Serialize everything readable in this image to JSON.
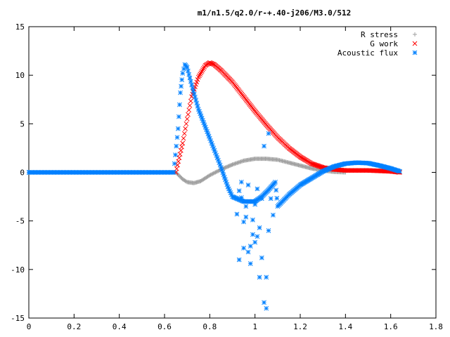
{
  "chart_data": {
    "type": "scatter",
    "title": "m1/n1.5/q2.0/r-+.40-j206/M3.0/512",
    "xlabel": "",
    "ylabel": "",
    "xlim": [
      0,
      1.8
    ],
    "ylim": [
      -15,
      15
    ],
    "x_ticks": [
      "0",
      "0.2",
      "0.4",
      "0.6",
      "0.8",
      "1",
      "1.2",
      "1.4",
      "1.6",
      "1.8"
    ],
    "y_ticks": [
      "15",
      "10",
      "5",
      "0",
      "-5",
      "-10",
      "-15"
    ],
    "grid": false,
    "legend_position": "top-right",
    "series": [
      {
        "name": "R stress",
        "marker": "+",
        "color": "#a0a0a0",
        "x": [
          0.0,
          0.1,
          0.2,
          0.3,
          0.4,
          0.5,
          0.6,
          0.65,
          0.68,
          0.7,
          0.73,
          0.76,
          0.8,
          0.85,
          0.9,
          0.95,
          1.0,
          1.05,
          1.1,
          1.15,
          1.2,
          1.25,
          1.3,
          1.35,
          1.4
        ],
        "y": [
          0,
          0,
          0,
          0,
          0,
          0,
          0,
          0,
          -0.7,
          -1.0,
          -1.1,
          -0.9,
          -0.3,
          0.3,
          0.8,
          1.2,
          1.4,
          1.4,
          1.3,
          1.0,
          0.7,
          0.4,
          0.2,
          0.05,
          0
        ]
      },
      {
        "name": "G work",
        "marker": "x",
        "color": "#ff0000",
        "x": [
          0.65,
          0.68,
          0.7,
          0.72,
          0.75,
          0.78,
          0.8,
          0.82,
          0.85,
          0.9,
          0.95,
          1.0,
          1.05,
          1.1,
          1.15,
          1.2,
          1.25,
          1.3,
          1.35,
          1.4,
          1.45,
          1.5,
          1.55,
          1.6,
          1.64
        ],
        "y": [
          0,
          3.0,
          5.5,
          7.8,
          9.8,
          11.0,
          11.3,
          11.1,
          10.5,
          9.3,
          7.8,
          6.3,
          4.9,
          3.6,
          2.5,
          1.6,
          0.9,
          0.5,
          0.3,
          0.2,
          0.2,
          0.2,
          0.15,
          0.1,
          0
        ]
      },
      {
        "name": "Acoustic flux",
        "marker": "*",
        "color": "#0080ff",
        "x": [
          0.0,
          0.1,
          0.2,
          0.3,
          0.4,
          0.5,
          0.6,
          0.64,
          0.66,
          0.67,
          0.68,
          0.69,
          0.7,
          0.72,
          0.75,
          0.8,
          0.85,
          0.88,
          0.9,
          0.95,
          1.0,
          1.03,
          1.06,
          1.09,
          1.1,
          1.15,
          1.2,
          1.25,
          1.3,
          1.35,
          1.4,
          1.45,
          1.5,
          1.55,
          1.6,
          1.64
        ],
        "y": [
          0,
          0,
          0,
          0,
          0,
          0,
          0,
          0,
          4.5,
          8.2,
          10.2,
          11.1,
          10.8,
          9.0,
          6.5,
          3.5,
          0.5,
          -1.5,
          -2.5,
          -3.0,
          -3.0,
          -2.5,
          -1.8,
          -1.0,
          -3.5,
          -2.3,
          -1.3,
          -0.6,
          0.1,
          0.6,
          0.9,
          1.0,
          0.95,
          0.7,
          0.4,
          0.1
        ]
      },
      {
        "name": "",
        "marker": "*",
        "color": "#0080ff",
        "x": [
          0.92,
          0.93,
          0.94,
          0.95,
          0.96,
          0.97,
          0.98,
          0.99,
          1.0,
          1.01,
          1.02,
          1.03,
          1.04,
          1.05,
          1.06,
          1.07,
          0.93,
          0.95,
          0.97,
          0.99,
          1.01,
          1.03,
          1.05,
          0.94,
          0.96,
          0.98,
          1.0,
          1.02,
          1.04,
          1.06,
          1.08
        ],
        "y": [
          -4.3,
          -9.0,
          -1.0,
          -5.1,
          -3.5,
          -8.2,
          -7.6,
          -4.9,
          -7.2,
          -6.6,
          -10.8,
          -2.7,
          -13.4,
          -10.8,
          -6.0,
          -2.7,
          -1.9,
          -7.8,
          -1.3,
          -6.4,
          -1.7,
          -8.8,
          -14.0,
          -2.6,
          -4.6,
          -9.4,
          -3.3,
          -5.7,
          2.7,
          4.0,
          -4.4
        ]
      }
    ]
  }
}
